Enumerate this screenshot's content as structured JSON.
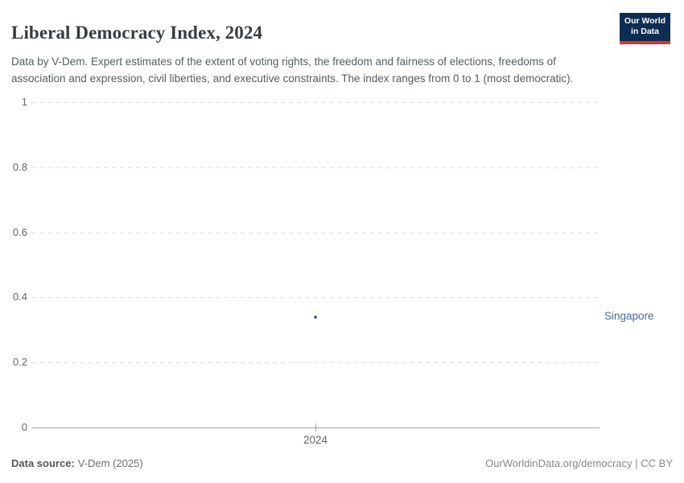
{
  "header": {
    "title": "Liberal Democracy Index, 2024",
    "subtitle": "Data by V-Dem. Expert estimates of the extent of voting rights, the freedom and fairness of elections, freedoms of association and expression, civil liberties, and executive constraints. The index ranges from 0 to 1 (most democratic).",
    "logo": {
      "line1": "Our World",
      "line2": "in Data",
      "bg_color": "#0d2e52",
      "stripe_color": "#dc352b"
    }
  },
  "chart_data": {
    "type": "scatter",
    "title": "Liberal Democracy Index, 2024",
    "x": [
      2024
    ],
    "xticks": [
      "2024"
    ],
    "series": [
      {
        "name": "Singapore",
        "values": [
          0.34
        ],
        "color": "#4c6a9c"
      }
    ],
    "yticks": [
      0,
      0.2,
      0.4,
      0.6,
      0.8,
      1
    ],
    "ylim": [
      0,
      1
    ],
    "xlabel": "",
    "ylabel": "",
    "grid": "horizontal-dashed",
    "legend_position": "entity-label-right"
  },
  "footer": {
    "source_label": "Data source:",
    "source_value": "V-Dem (2025)",
    "credit": "OurWorldinData.org/democracy | CC BY"
  },
  "colors": {
    "accent_blue": "#4c6a9c",
    "grid": "#dddddd",
    "axis": "#a3a3a3",
    "tick_text": "#666666",
    "title_text": "#383d40",
    "subtitle_text": "#555d61"
  }
}
